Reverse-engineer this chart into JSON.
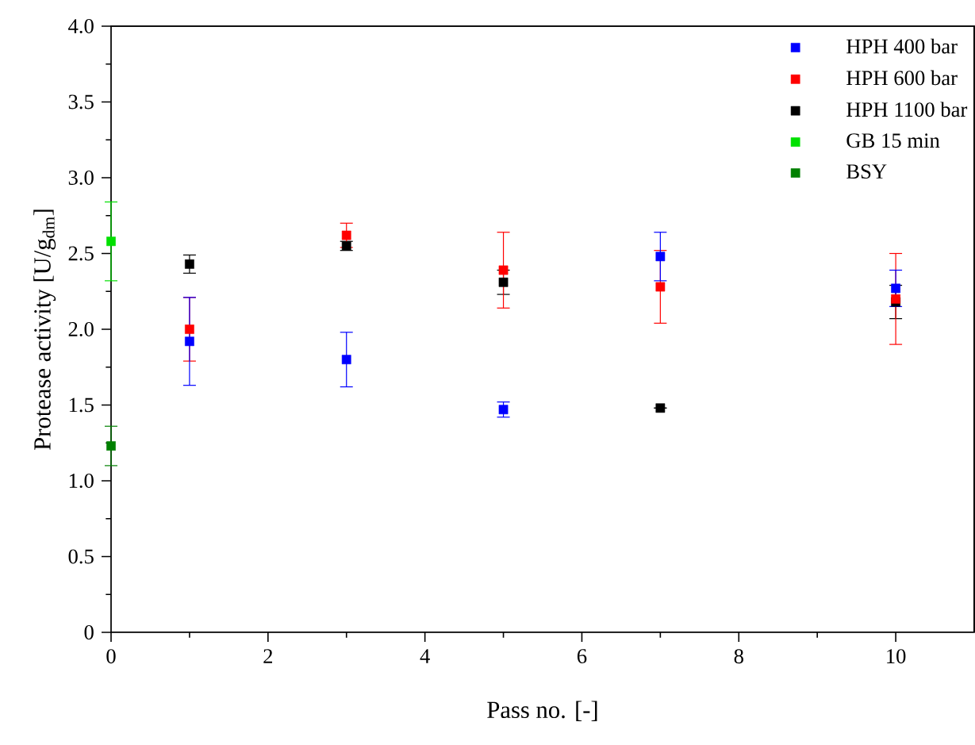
{
  "chart_data": {
    "type": "scatter",
    "xlabel": "Pass no. [-]",
    "ylabel": "Protease activity [U/g$_{dm}$]",
    "xlim": [
      0,
      11
    ],
    "xticks": [
      0,
      2,
      4,
      6,
      8,
      10
    ],
    "ylim": [
      0,
      4
    ],
    "yticks": [
      0,
      0.5,
      {
        "value": 1,
        "label": "1.0"
      },
      1.5,
      {
        "value": 2,
        "label": "2.0"
      },
      2.5,
      {
        "value": 3,
        "label": "3.0"
      },
      3.5,
      {
        "value": 4,
        "label": "4.0"
      }
    ],
    "marker": "square",
    "legend": "top right",
    "grid": false,
    "series": [
      {
        "name": "HPH 400 bar",
        "color": "#0000ff",
        "x": [
          1,
          3,
          5,
          7,
          10
        ],
        "values": [
          1.92,
          1.8,
          1.47,
          2.48,
          2.27
        ],
        "errors": [
          0.29,
          0.18,
          0.05,
          0.16,
          0.12
        ]
      },
      {
        "name": "HPH 600 bar",
        "color": "#ff0000",
        "x": [
          1,
          3,
          5,
          7,
          10
        ],
        "values": [
          2.0,
          2.62,
          2.39,
          2.28,
          2.2
        ],
        "errors": [
          0.21,
          0.08,
          0.25,
          0.24,
          0.3
        ]
      },
      {
        "name": "HPH 1100 bar",
        "color": "#000000",
        "x": [
          1,
          3,
          5,
          7,
          10
        ],
        "values": [
          2.43,
          2.55,
          2.31,
          1.48,
          2.18
        ],
        "errors": [
          0.06,
          0.03,
          0.08,
          null,
          0.11
        ]
      },
      {
        "name": "GB 15 min",
        "color": "#00e000",
        "x": [
          0
        ],
        "values": [
          2.58
        ],
        "errors": [
          0.26
        ]
      },
      {
        "name": "BSY",
        "color": "#008000",
        "x": [
          0
        ],
        "values": [
          1.23
        ],
        "errors": [
          0.13
        ]
      }
    ]
  }
}
